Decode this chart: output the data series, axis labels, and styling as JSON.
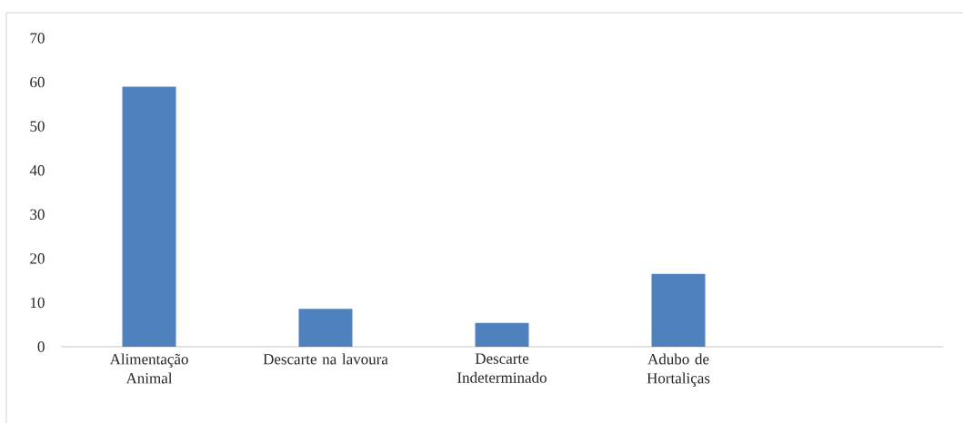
{
  "chart_data": {
    "type": "bar",
    "categories": [
      "Alimentação Animal",
      "Descarte na lavoura",
      "Descarte Indeterminado",
      "Adubo de Hortaliças",
      null
    ],
    "values": [
      59,
      8.6,
      5.4,
      16.5,
      null
    ],
    "color": "#4f81bd",
    "ylim": [
      0,
      70
    ],
    "yticks": [
      0,
      10,
      20,
      30,
      40,
      50,
      60,
      70
    ],
    "grid": false
  }
}
